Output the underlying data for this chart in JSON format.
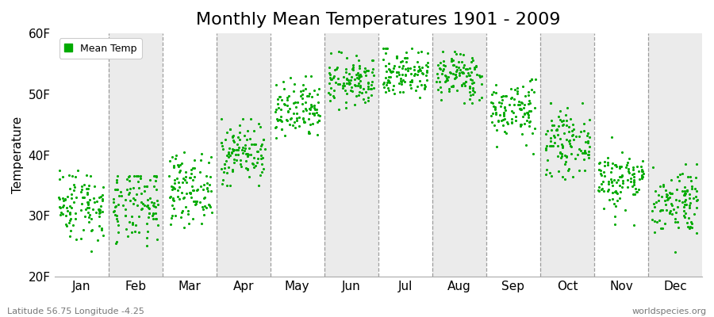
{
  "title": "Monthly Mean Temperatures 1901 - 2009",
  "ylabel": "Temperature",
  "ylim": [
    20,
    60
  ],
  "yticks": [
    20,
    30,
    40,
    50,
    60
  ],
  "ytick_labels": [
    "20F",
    "30F",
    "40F",
    "50F",
    "60F"
  ],
  "months": [
    "Jan",
    "Feb",
    "Mar",
    "Apr",
    "May",
    "Jun",
    "Jul",
    "Aug",
    "Sep",
    "Oct",
    "Nov",
    "Dec"
  ],
  "dot_color": "#00aa00",
  "background_light": "#ffffff",
  "background_dark": "#ebebeb",
  "legend_label": "Mean Temp",
  "footer_left": "Latitude 56.75 Longitude -4.25",
  "footer_right": "worldspecies.org",
  "monthly_means": [
    32.0,
    31.5,
    34.5,
    40.5,
    47.0,
    52.0,
    53.5,
    53.0,
    47.5,
    42.0,
    36.0,
    32.5
  ],
  "monthly_stds": [
    3.0,
    3.2,
    2.8,
    2.5,
    2.5,
    2.0,
    2.0,
    2.0,
    2.5,
    2.5,
    2.5,
    2.8
  ],
  "monthly_mins": [
    21.0,
    20.5,
    27.0,
    35.0,
    41.0,
    47.0,
    49.0,
    48.5,
    40.0,
    36.0,
    28.0,
    24.0
  ],
  "monthly_maxs": [
    37.5,
    36.5,
    40.5,
    46.0,
    53.0,
    57.0,
    57.5,
    57.0,
    52.5,
    48.5,
    43.0,
    38.5
  ],
  "n_years": 109,
  "seed": 42,
  "dot_size": 5,
  "title_fontsize": 16,
  "axis_fontsize": 11,
  "tick_fontsize": 11
}
